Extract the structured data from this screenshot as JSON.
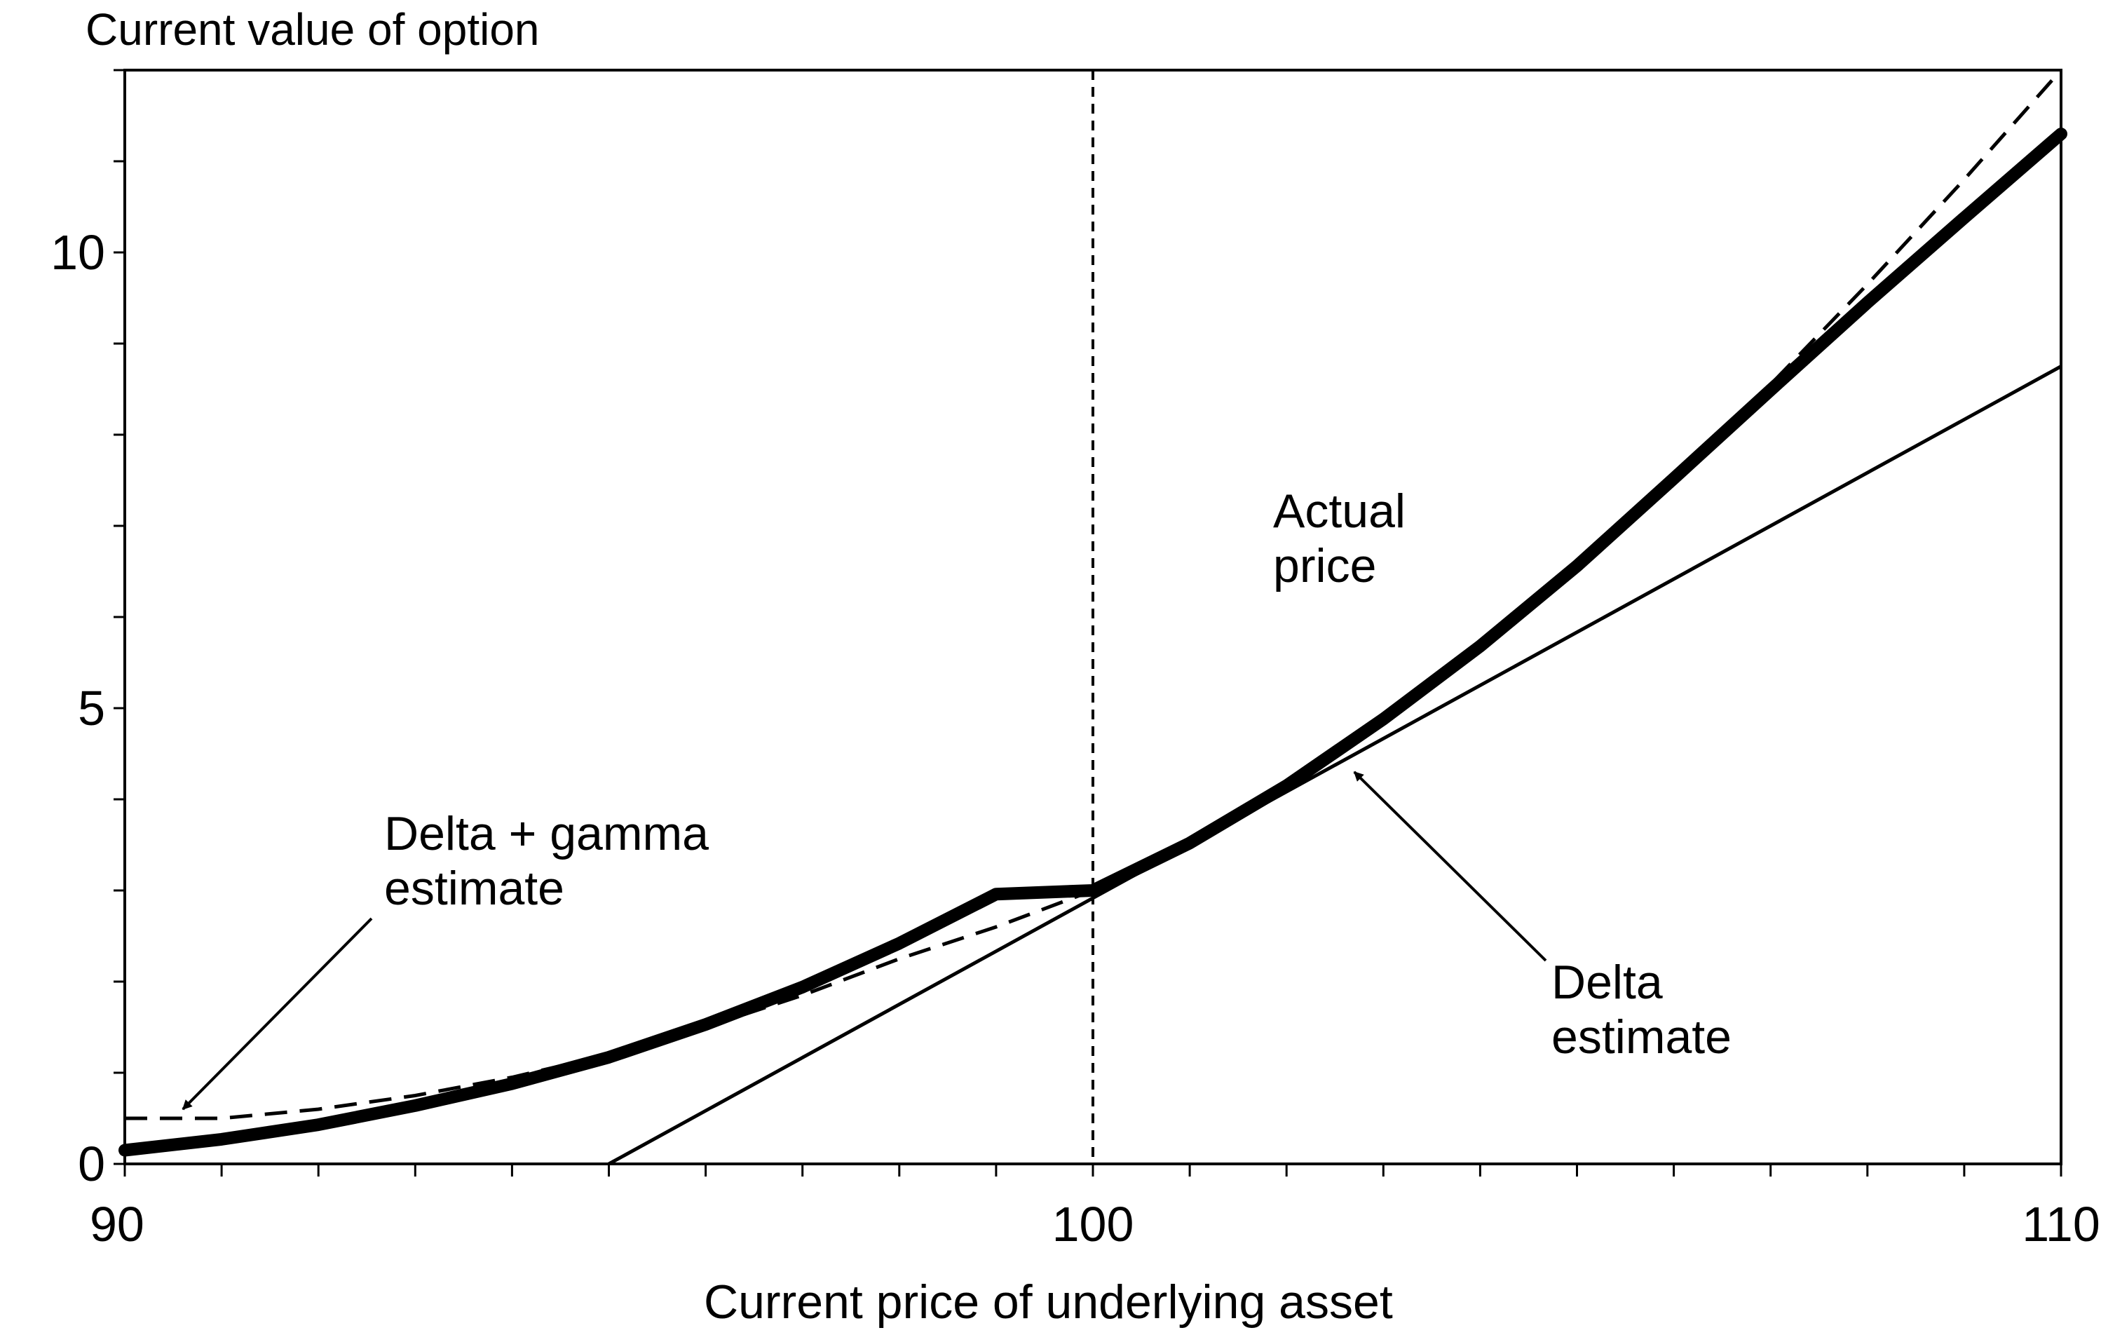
{
  "chart_data": {
    "type": "line",
    "ylabel": "Current value of option",
    "xlabel": "Current price of underlying asset",
    "xlim": [
      90,
      110
    ],
    "ylim": [
      0,
      12
    ],
    "x_ticks": [
      90,
      100,
      110
    ],
    "x_tick_labels": [
      "90",
      "100",
      "110"
    ],
    "x_minor_step": 1,
    "y_ticks": [
      0,
      5,
      10
    ],
    "y_tick_labels": [
      "0",
      "5",
      "10"
    ],
    "y_minor_step": 1,
    "grid": false,
    "reference_line": {
      "x": 100,
      "style": "dashed"
    },
    "series": [
      {
        "name": "Actual price",
        "style": "thick-solid",
        "x": [
          90,
          91,
          92,
          93,
          94,
          95,
          96,
          97,
          98,
          99,
          100,
          101,
          102,
          103,
          104,
          105,
          106,
          107,
          108,
          109,
          110
        ],
        "y": [
          0.15,
          0.27,
          0.43,
          0.64,
          0.88,
          1.17,
          1.53,
          1.94,
          2.42,
          2.96,
          3.0,
          3.52,
          4.15,
          4.88,
          5.68,
          6.56,
          7.52,
          8.49,
          9.45,
          10.38,
          11.3
        ]
      },
      {
        "name": "Delta estimate",
        "style": "thin-solid",
        "x": [
          95,
          110
        ],
        "y": [
          0,
          8.75
        ]
      },
      {
        "name": "Delta + gamma estimate",
        "style": "dashed",
        "x": [
          90,
          91,
          92,
          93,
          94,
          95,
          96,
          97,
          98,
          99,
          100,
          101,
          102,
          103,
          104,
          105,
          106,
          107,
          108,
          109,
          110
        ],
        "y": [
          0.5,
          0.5,
          0.6,
          0.75,
          0.95,
          1.2,
          1.5,
          1.85,
          2.25,
          2.6,
          3.0,
          3.55,
          4.15,
          4.85,
          5.65,
          6.55,
          7.5,
          8.55,
          9.65,
          10.8,
          12.0
        ]
      }
    ],
    "annotations": [
      {
        "id": "actual",
        "text_lines": [
          "Actual",
          "price"
        ]
      },
      {
        "id": "delta-gamma",
        "text_lines": [
          "Delta + gamma",
          "estimate"
        ],
        "arrow_to": {
          "x": 90.6,
          "y": 0.6
        }
      },
      {
        "id": "delta",
        "text_lines": [
          "Delta",
          "estimate"
        ],
        "arrow_to": {
          "x": 102.7,
          "y": 4.3
        }
      }
    ]
  }
}
